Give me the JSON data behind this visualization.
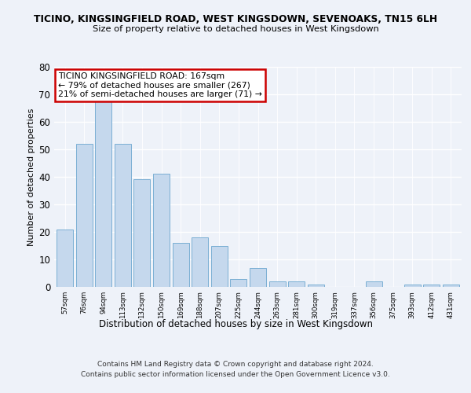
{
  "title1": "TICINO, KINGSINGFIELD ROAD, WEST KINGSDOWN, SEVENOAKS, TN15 6LH",
  "title2": "Size of property relative to detached houses in West Kingsdown",
  "xlabel": "Distribution of detached houses by size in West Kingsdown",
  "ylabel": "Number of detached properties",
  "categories": [
    "57sqm",
    "76sqm",
    "94sqm",
    "113sqm",
    "132sqm",
    "150sqm",
    "169sqm",
    "188sqm",
    "207sqm",
    "225sqm",
    "244sqm",
    "263sqm",
    "281sqm",
    "300sqm",
    "319sqm",
    "337sqm",
    "356sqm",
    "375sqm",
    "393sqm",
    "412sqm",
    "431sqm"
  ],
  "values": [
    21,
    52,
    68,
    52,
    39,
    41,
    16,
    18,
    15,
    3,
    7,
    2,
    2,
    1,
    0,
    0,
    2,
    0,
    1,
    1,
    1
  ],
  "bar_color": "#c5d8ed",
  "bar_edge_color": "#7bafd4",
  "annotation_text": "TICINO KINGSINGFIELD ROAD: 167sqm\n← 79% of detached houses are smaller (267)\n21% of semi-detached houses are larger (71) →",
  "annotation_box_color": "#ffffff",
  "annotation_box_edge": "#cc0000",
  "background_color": "#eef2f9",
  "grid_color": "#ffffff",
  "footer": "Contains HM Land Registry data © Crown copyright and database right 2024.\nContains public sector information licensed under the Open Government Licence v3.0.",
  "ylim": [
    0,
    80
  ],
  "yticks": [
    0,
    10,
    20,
    30,
    40,
    50,
    60,
    70,
    80
  ]
}
